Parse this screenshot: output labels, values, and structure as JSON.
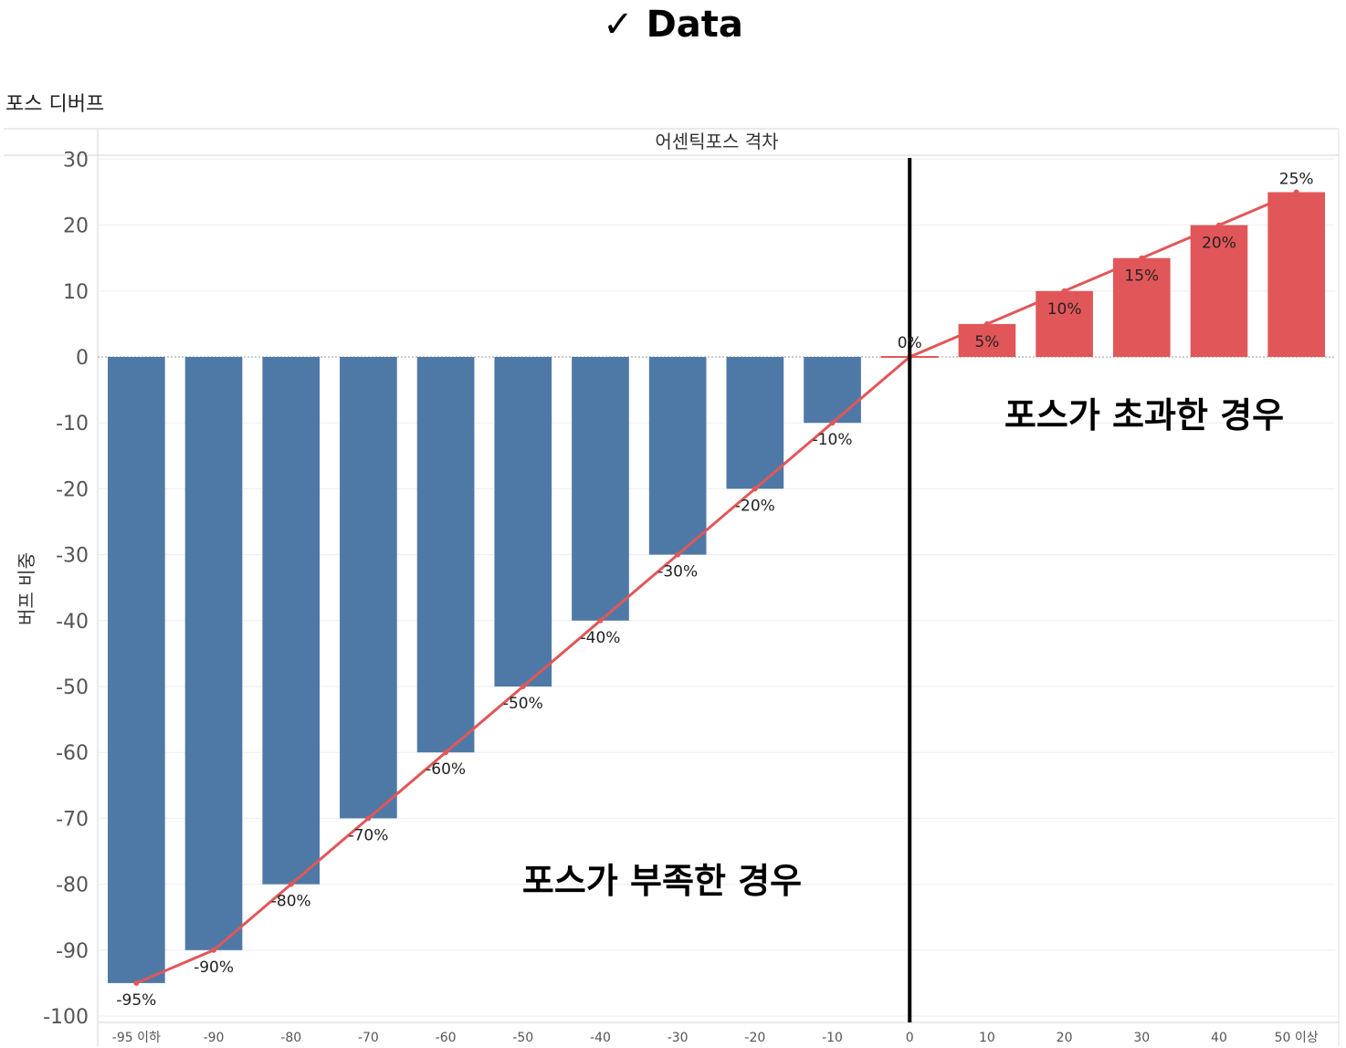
{
  "header": {
    "title": "✓ Data"
  },
  "sheet": {
    "title": "포스 디버프"
  },
  "chart_data": {
    "type": "bar",
    "column_header": "어센틱포스 격차",
    "ylabel": "버프 비중",
    "ylim": [
      -100,
      30
    ],
    "yticks": [
      30,
      20,
      10,
      0,
      -10,
      -20,
      -30,
      -40,
      -50,
      -60,
      -70,
      -80,
      -90,
      -100
    ],
    "categories": [
      "-95 이하",
      "-90",
      "-80",
      "-70",
      "-60",
      "-50",
      "-40",
      "-30",
      "-20",
      "-10",
      "0",
      "10",
      "20",
      "30",
      "40",
      "50 이상"
    ],
    "values": [
      -95,
      -90,
      -80,
      -70,
      -60,
      -50,
      -40,
      -30,
      -20,
      -10,
      0,
      5,
      10,
      15,
      20,
      25
    ],
    "labels": [
      "-95%",
      "-90%",
      "-80%",
      "-70%",
      "-60%",
      "-50%",
      "-40%",
      "-30%",
      "-20%",
      "-10%",
      "0%",
      "5%",
      "10%",
      "15%",
      "20%",
      "25%"
    ],
    "has_trend_line": true,
    "divider_at_category": "0",
    "annotations": {
      "negative": "포스가 부족한 경우",
      "positive": "포스가 초과한 경우"
    },
    "colors": {
      "negative": "#4e79a7",
      "positive": "#e15759",
      "line": "#e15759",
      "divider": "#000000"
    },
    "grid": true
  }
}
